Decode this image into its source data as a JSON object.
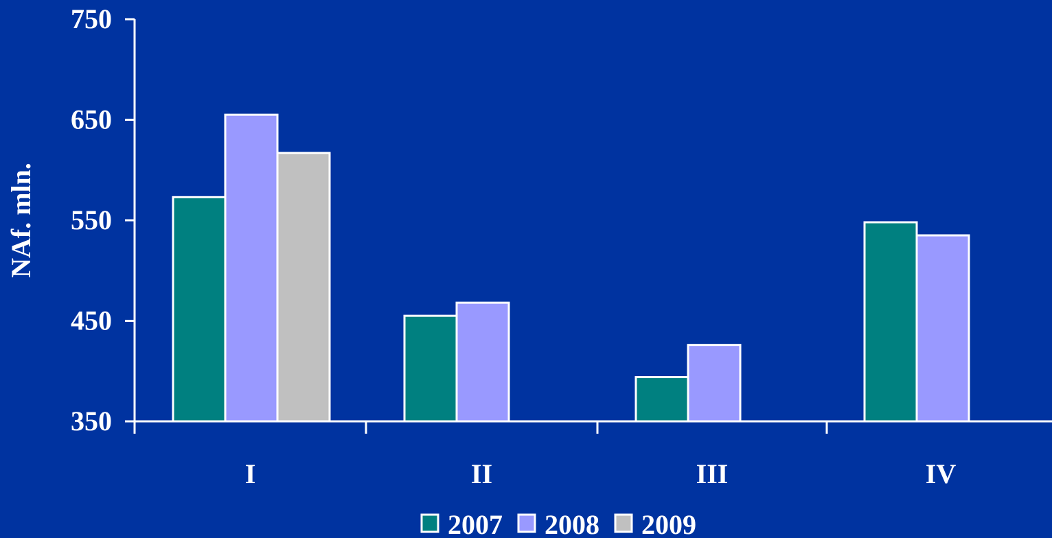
{
  "chart_data": {
    "type": "bar",
    "categories": [
      "I",
      "II",
      "III",
      "IV"
    ],
    "series": [
      {
        "name": "2007",
        "color": "#008080",
        "values": [
          573,
          455,
          394,
          548
        ]
      },
      {
        "name": "2008",
        "color": "#9999ff",
        "values": [
          655,
          468,
          426,
          535
        ]
      },
      {
        "name": "2009",
        "color": "#c0c0c0",
        "values": [
          617,
          null,
          null,
          null
        ]
      }
    ],
    "ylabel": "NAf. mln.",
    "ylim": [
      350,
      750
    ],
    "yticks": [
      "350",
      "450",
      "550",
      "650",
      "750"
    ],
    "grid": false,
    "legend": "bottom-center",
    "background": "#0033a0"
  }
}
